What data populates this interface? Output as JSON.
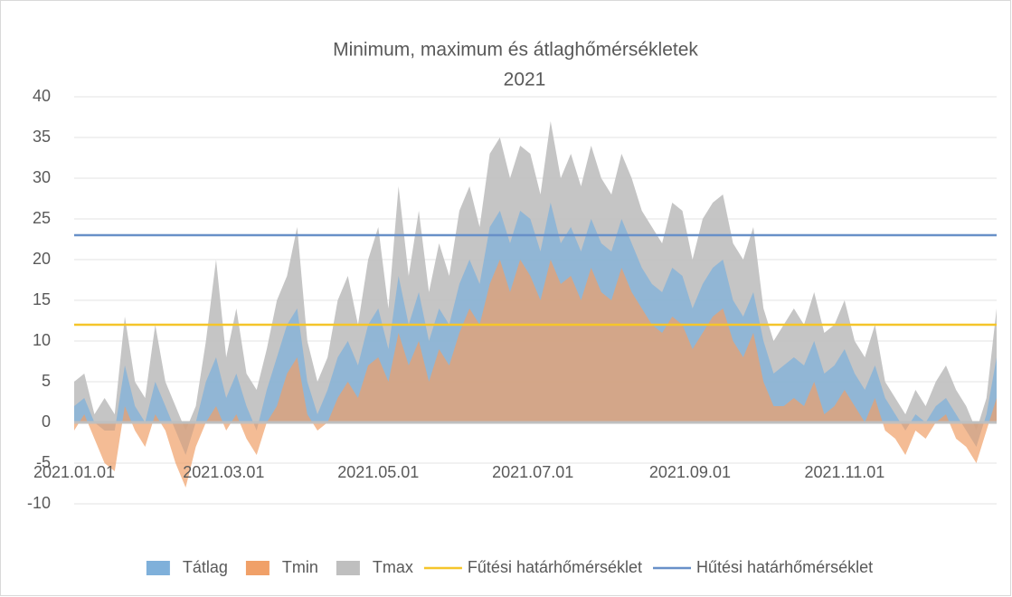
{
  "chart_data": {
    "type": "area",
    "title": "Minimum, maximum és átlaghőmérsékletek",
    "subtitle": "2021",
    "x": [
      "2021.01.01",
      "2021.01.05",
      "2021.01.09",
      "2021.01.13",
      "2021.01.17",
      "2021.01.21",
      "2021.01.25",
      "2021.01.29",
      "2021.02.02",
      "2021.02.06",
      "2021.02.10",
      "2021.02.14",
      "2021.02.18",
      "2021.02.22",
      "2021.02.26",
      "2021.03.02",
      "2021.03.06",
      "2021.03.10",
      "2021.03.14",
      "2021.03.18",
      "2021.03.22",
      "2021.03.26",
      "2021.03.30",
      "2021.04.03",
      "2021.04.07",
      "2021.04.11",
      "2021.04.15",
      "2021.04.19",
      "2021.04.23",
      "2021.04.27",
      "2021.05.01",
      "2021.05.05",
      "2021.05.09",
      "2021.05.13",
      "2021.05.17",
      "2021.05.21",
      "2021.05.25",
      "2021.05.29",
      "2021.06.02",
      "2021.06.06",
      "2021.06.10",
      "2021.06.14",
      "2021.06.18",
      "2021.06.22",
      "2021.06.26",
      "2021.06.30",
      "2021.07.04",
      "2021.07.08",
      "2021.07.12",
      "2021.07.16",
      "2021.07.20",
      "2021.07.24",
      "2021.07.28",
      "2021.08.01",
      "2021.08.05",
      "2021.08.09",
      "2021.08.13",
      "2021.08.17",
      "2021.08.21",
      "2021.08.25",
      "2021.08.29",
      "2021.09.02",
      "2021.09.06",
      "2021.09.10",
      "2021.09.14",
      "2021.09.18",
      "2021.09.22",
      "2021.09.26",
      "2021.09.30",
      "2021.10.04",
      "2021.10.08",
      "2021.10.12",
      "2021.10.16",
      "2021.10.20",
      "2021.10.24",
      "2021.10.28",
      "2021.11.01",
      "2021.11.05",
      "2021.11.09",
      "2021.11.13",
      "2021.11.17",
      "2021.11.21",
      "2021.11.25",
      "2021.11.29",
      "2021.12.03",
      "2021.12.07",
      "2021.12.11",
      "2021.12.15",
      "2021.12.19",
      "2021.12.23",
      "2021.12.27",
      "2021.12.31"
    ],
    "series": [
      {
        "name": "Tátlag",
        "color": "#7fb0da",
        "values": [
          2,
          3,
          0,
          -1,
          -1,
          7,
          2,
          0,
          5,
          2,
          -1,
          -4,
          0,
          5,
          8,
          3,
          6,
          2,
          -1,
          4,
          8,
          12,
          14,
          5,
          1,
          4,
          8,
          10,
          7,
          12,
          14,
          9,
          18,
          12,
          16,
          10,
          14,
          12,
          17,
          20,
          17,
          24,
          26,
          22,
          26,
          25,
          21,
          27,
          22,
          24,
          21,
          25,
          22,
          21,
          25,
          22,
          19,
          17,
          16,
          19,
          18,
          14,
          17,
          19,
          20,
          15,
          13,
          16,
          10,
          6,
          7,
          8,
          7,
          10,
          6,
          7,
          9,
          6,
          4,
          7,
          3,
          1,
          -1,
          1,
          0,
          2,
          3,
          1,
          -1,
          -3,
          1,
          8
        ]
      },
      {
        "name": "Tmin",
        "color": "#f0a068",
        "values": [
          -1,
          1,
          -2,
          -5,
          -6,
          2,
          -1,
          -3,
          1,
          -1,
          -5,
          -8,
          -3,
          0,
          2,
          -1,
          1,
          -2,
          -4,
          0,
          2,
          6,
          8,
          1,
          -1,
          0,
          3,
          5,
          3,
          7,
          8,
          5,
          11,
          7,
          10,
          5,
          9,
          7,
          11,
          14,
          12,
          17,
          20,
          16,
          20,
          18,
          15,
          20,
          17,
          18,
          15,
          19,
          16,
          15,
          19,
          16,
          14,
          12,
          11,
          13,
          12,
          9,
          11,
          13,
          14,
          10,
          8,
          11,
          5,
          2,
          2,
          3,
          2,
          5,
          1,
          2,
          4,
          2,
          0,
          3,
          -1,
          -2,
          -4,
          -1,
          -2,
          0,
          1,
          -2,
          -3,
          -5,
          -1,
          3
        ]
      },
      {
        "name": "Tmax",
        "color": "#bfbfbf",
        "values": [
          5,
          6,
          1,
          3,
          1,
          13,
          5,
          3,
          12,
          5,
          2,
          -1,
          2,
          10,
          20,
          8,
          14,
          6,
          4,
          9,
          15,
          18,
          24,
          10,
          5,
          8,
          15,
          18,
          12,
          20,
          24,
          14,
          29,
          18,
          26,
          16,
          22,
          18,
          26,
          29,
          24,
          33,
          35,
          30,
          34,
          33,
          28,
          37,
          30,
          33,
          29,
          34,
          30,
          28,
          33,
          30,
          26,
          24,
          22,
          27,
          26,
          20,
          25,
          27,
          28,
          22,
          20,
          24,
          14,
          10,
          12,
          14,
          12,
          16,
          11,
          12,
          15,
          10,
          8,
          12,
          5,
          3,
          1,
          4,
          2,
          5,
          7,
          4,
          2,
          -1,
          3,
          14
        ]
      }
    ],
    "reference_lines": [
      {
        "name": "Fűtési határhőmérséklet",
        "color": "#f5c52a",
        "value": 12
      },
      {
        "name": "Hűtési határhőmérséklet",
        "color": "#6890c8",
        "value": 23
      }
    ],
    "xlim": [
      "2021.01.01",
      "2021.12.31"
    ],
    "xticks": [
      "2021.01.01",
      "2021.03.01",
      "2021.05.01",
      "2021.07.01",
      "2021.09.01",
      "2021.11.01"
    ],
    "ylim": [
      -10,
      40
    ],
    "yticks": [
      -10,
      -5,
      0,
      5,
      10,
      15,
      20,
      25,
      30,
      35,
      40
    ],
    "grid": true,
    "legend": "bottom"
  }
}
